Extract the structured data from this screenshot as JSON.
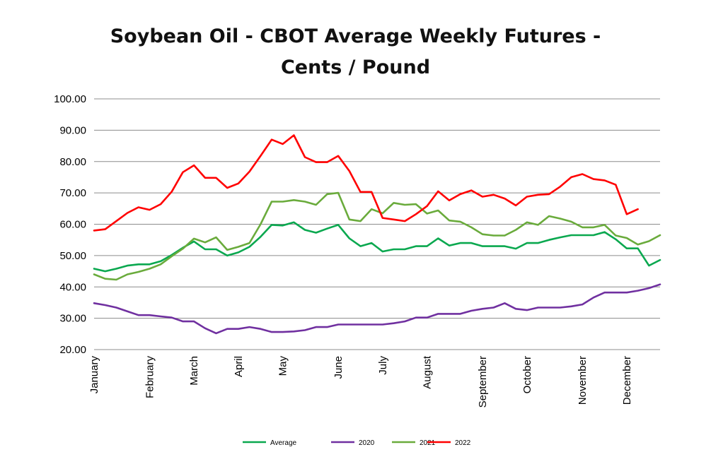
{
  "chart_data": {
    "type": "line",
    "title_line1": "Soybean Oil - CBOT Average Weekly Futures -",
    "title_line2": "Cents / Pound",
    "xlabel": "",
    "ylabel": "",
    "ylim": [
      20,
      100
    ],
    "y_ticks": [
      "100.00",
      "90.00",
      "80.00",
      "70.00",
      "60.00",
      "50.00",
      "40.00",
      "30.00",
      "20.00"
    ],
    "grid": true,
    "legend_position": "bottom",
    "weeks": 52,
    "month_labels": [
      {
        "label": "January",
        "week": 1
      },
      {
        "label": "February",
        "week": 6
      },
      {
        "label": "March",
        "week": 10
      },
      {
        "label": "April",
        "week": 14
      },
      {
        "label": "May",
        "week": 18
      },
      {
        "label": "June",
        "week": 23
      },
      {
        "label": "July",
        "week": 27
      },
      {
        "label": "August",
        "week": 31
      },
      {
        "label": "September",
        "week": 36
      },
      {
        "label": "October",
        "week": 40
      },
      {
        "label": "November",
        "week": 45
      },
      {
        "label": "December",
        "week": 49
      }
    ],
    "series": [
      {
        "name": "Average",
        "color": "#0aa84f",
        "values": [
          45.8,
          45,
          45.8,
          46.8,
          47.2,
          47.2,
          48.2,
          50.2,
          52.5,
          54.5,
          52,
          52,
          50,
          51,
          52.8,
          56,
          59.8,
          59.6,
          60.6,
          58.2,
          57.3,
          58.6,
          59.8,
          55.5,
          53,
          54,
          51.3,
          52,
          52,
          53,
          53,
          55.5,
          53.2,
          54,
          54,
          53,
          53,
          53,
          52.2,
          54,
          54,
          55,
          55.8,
          56.5,
          56.5,
          56.5,
          57.5,
          55.2,
          52.3,
          52.3,
          46.8,
          48.6
        ]
      },
      {
        "name": "2020",
        "color": "#7030a0",
        "values": [
          34.8,
          34.2,
          33.4,
          32.2,
          31,
          31,
          30.6,
          30.2,
          29,
          29,
          26.8,
          25.2,
          26.6,
          26.6,
          27.2,
          26.6,
          25.6,
          25.6,
          25.8,
          26.2,
          27.2,
          27.2,
          28,
          28,
          28,
          28,
          28,
          28.4,
          29,
          30.2,
          30.2,
          31.4,
          31.4,
          31.4,
          32.4,
          33,
          33.4,
          34.8,
          33,
          32.6,
          33.4,
          33.4,
          33.4,
          33.8,
          34.4,
          36.6,
          38.2,
          38.2,
          38.2,
          38.8,
          39.6,
          40.8
        ]
      },
      {
        "name": "2021",
        "color": "#6aab3c",
        "values": [
          44,
          42.6,
          42.3,
          44,
          44.8,
          45.8,
          47.2,
          49.8,
          52.2,
          55.4,
          54.2,
          55.8,
          51.8,
          52.8,
          54,
          60,
          67.2,
          67.2,
          67.7,
          67.2,
          66.2,
          69.6,
          70,
          61.5,
          61,
          64.8,
          63.5,
          66.8,
          66.2,
          66.4,
          63.4,
          64.4,
          61.2,
          60.8,
          59,
          56.8,
          56.4,
          56.4,
          58.2,
          60.6,
          59.8,
          62.6,
          61.8,
          60.8,
          59,
          59,
          59.8,
          56.4,
          55.6,
          53.5,
          54.6,
          56.5
        ]
      },
      {
        "name": "2022",
        "color": "#ff0000",
        "values": [
          58,
          58.4,
          61,
          63.6,
          65.4,
          64.6,
          66.4,
          70.4,
          76.6,
          78.8,
          74.8,
          74.8,
          71.6,
          73,
          76.8,
          81.8,
          87,
          85.6,
          88.4,
          81.4,
          79.8,
          79.8,
          81.8,
          77,
          70.3,
          70.3,
          62,
          61.5,
          61,
          63.2,
          65.8,
          70.5,
          67.6,
          69.6,
          70.8,
          68.8,
          69.4,
          68.2,
          66,
          68.8,
          69.4,
          69.6,
          72,
          75,
          76,
          74.4,
          74,
          72.6,
          63.2,
          64.8
        ]
      }
    ]
  }
}
